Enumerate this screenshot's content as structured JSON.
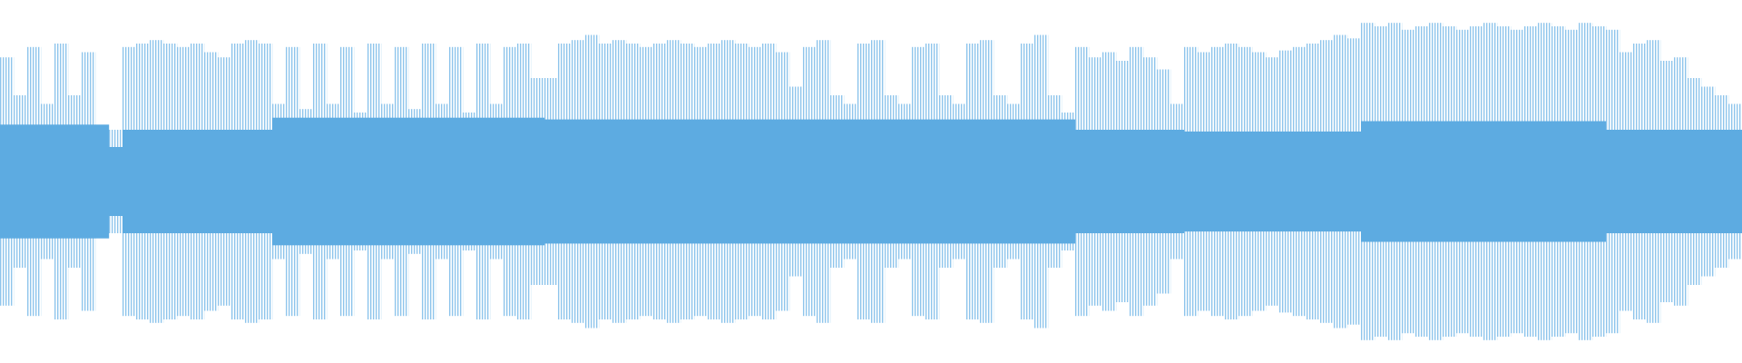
{
  "chart_data": {
    "type": "waveform",
    "ylim": [
      -1,
      1
    ],
    "series": [
      {
        "color": "#8fc5ec",
        "values": [
          0.72,
          0.5,
          0.78,
          0.45,
          0.8,
          0.5,
          0.75,
          0.3,
          0.3,
          0.78,
          0.8,
          0.82,
          0.8,
          0.78,
          0.8,
          0.75,
          0.72,
          0.8,
          0.82,
          0.8,
          0.45,
          0.78,
          0.42,
          0.8,
          0.45,
          0.78,
          0.4,
          0.8,
          0.45,
          0.78,
          0.42,
          0.8,
          0.45,
          0.78,
          0.4,
          0.8,
          0.45,
          0.78,
          0.8,
          0.6,
          0.6,
          0.8,
          0.82,
          0.85,
          0.8,
          0.82,
          0.8,
          0.78,
          0.8,
          0.82,
          0.8,
          0.78,
          0.8,
          0.82,
          0.8,
          0.78,
          0.8,
          0.75,
          0.55,
          0.78,
          0.82,
          0.5,
          0.45,
          0.8,
          0.82,
          0.5,
          0.45,
          0.78,
          0.8,
          0.5,
          0.45,
          0.8,
          0.82,
          0.5,
          0.45,
          0.8,
          0.85,
          0.5,
          0.4,
          0.78,
          0.72,
          0.75,
          0.7,
          0.78,
          0.72,
          0.65,
          0.45,
          0.78,
          0.75,
          0.78,
          0.8,
          0.78,
          0.75,
          0.72,
          0.76,
          0.78,
          0.8,
          0.82,
          0.85,
          0.83,
          0.92,
          0.9,
          0.92,
          0.88,
          0.9,
          0.92,
          0.9,
          0.88,
          0.9,
          0.92,
          0.9,
          0.88,
          0.9,
          0.92,
          0.9,
          0.88,
          0.92,
          0.9,
          0.88,
          0.75,
          0.8,
          0.82,
          0.7,
          0.72,
          0.6,
          0.55,
          0.5,
          0.45
        ]
      },
      {
        "color": "#5dabe1",
        "values": [
          0.33,
          0.33,
          0.33,
          0.33,
          0.33,
          0.33,
          0.33,
          0.33,
          0.2,
          0.3,
          0.3,
          0.3,
          0.3,
          0.3,
          0.3,
          0.3,
          0.3,
          0.3,
          0.3,
          0.3,
          0.37,
          0.37,
          0.37,
          0.37,
          0.37,
          0.37,
          0.37,
          0.37,
          0.37,
          0.37,
          0.37,
          0.37,
          0.37,
          0.37,
          0.37,
          0.37,
          0.37,
          0.37,
          0.37,
          0.37,
          0.36,
          0.36,
          0.36,
          0.36,
          0.36,
          0.36,
          0.36,
          0.36,
          0.36,
          0.36,
          0.36,
          0.36,
          0.36,
          0.36,
          0.36,
          0.36,
          0.36,
          0.36,
          0.36,
          0.36,
          0.36,
          0.36,
          0.36,
          0.36,
          0.36,
          0.36,
          0.36,
          0.36,
          0.36,
          0.36,
          0.36,
          0.36,
          0.36,
          0.36,
          0.36,
          0.36,
          0.36,
          0.36,
          0.36,
          0.3,
          0.3,
          0.3,
          0.3,
          0.3,
          0.3,
          0.3,
          0.3,
          0.29,
          0.29,
          0.29,
          0.29,
          0.29,
          0.29,
          0.29,
          0.29,
          0.29,
          0.29,
          0.29,
          0.29,
          0.29,
          0.35,
          0.35,
          0.35,
          0.35,
          0.35,
          0.35,
          0.35,
          0.35,
          0.35,
          0.35,
          0.35,
          0.35,
          0.35,
          0.35,
          0.35,
          0.35,
          0.35,
          0.35,
          0.3,
          0.3,
          0.3,
          0.3,
          0.3,
          0.3,
          0.3,
          0.3,
          0.3,
          0.3
        ]
      }
    ]
  }
}
